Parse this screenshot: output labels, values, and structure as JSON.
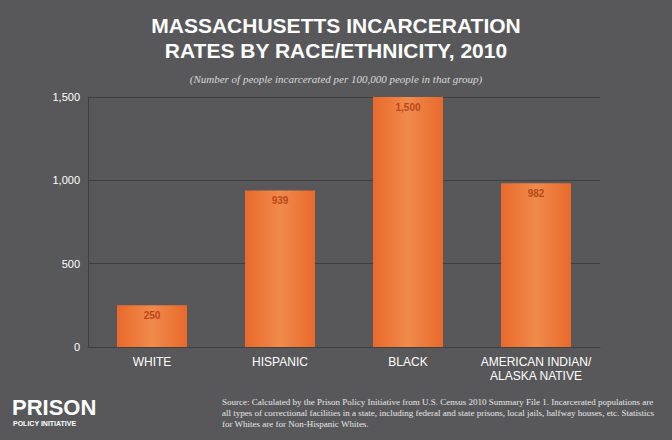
{
  "chart_data": {
    "type": "bar",
    "title": "MASSACHUSETTS INCARCERATION RATES BY RACE/ETHNICITY, 2010",
    "subtitle": "(Number of people incarcerated per 100,000 people in that group)",
    "categories": [
      "WHITE",
      "HISPANIC",
      "BLACK",
      "AMERICAN INDIAN/ALASKA NATIVE"
    ],
    "values": [
      250,
      939,
      1500,
      982
    ],
    "value_labels": [
      "250",
      "939",
      "1,500",
      "982"
    ],
    "data_labels": true,
    "color": "#e8692b",
    "ylim": [
      0,
      1500
    ],
    "yticks": [
      0,
      500,
      {
        "value": 1000,
        "label": "1,000"
      },
      {
        "value": 1500,
        "label": "1,500"
      }
    ],
    "grid": true,
    "source": "Source: Calculated by the Prison Policy Initiative from U.S. Census 2010 Summary File 1. Incarcerated populations are all types of correctional facilities in a state, including federal and state prisons, local jails, halfway houses, etc. Statistics for Whites are for Non-Hispanic Whites.",
    "logo": [
      "PRISON",
      "POLICY INITIATIVE"
    ]
  }
}
